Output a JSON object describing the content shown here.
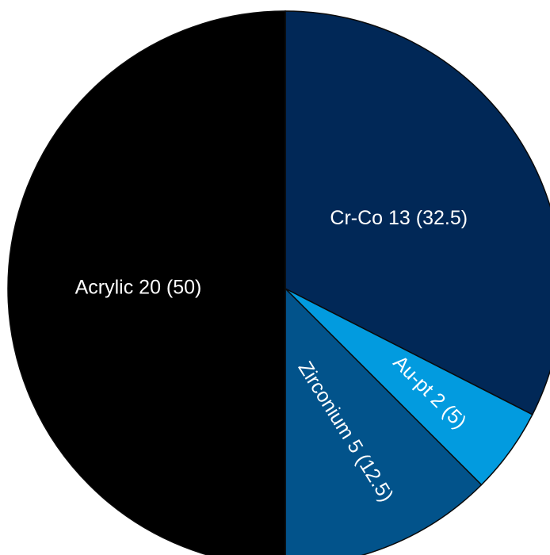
{
  "chart_data": {
    "type": "pie",
    "title": "",
    "start": "12 o'clock",
    "direction": "clockwise",
    "slices": [
      {
        "name": "Cr-Co",
        "value": 13,
        "percent": 32.5,
        "label": "Cr-Co 13 (32.5)",
        "color": "#012857"
      },
      {
        "name": "Au-pt",
        "value": 2,
        "percent": 5,
        "label": "Au-pt 2 (5)",
        "color": "#029bdf"
      },
      {
        "name": "Zirconium",
        "value": 5,
        "percent": 12.5,
        "label": "Zirconium 5 (12.5)",
        "color": "#02538b"
      },
      {
        "name": "Acrylic",
        "value": 20,
        "percent": 50,
        "label": "Acrylic 20 (50)",
        "color": "#000000"
      }
    ]
  }
}
